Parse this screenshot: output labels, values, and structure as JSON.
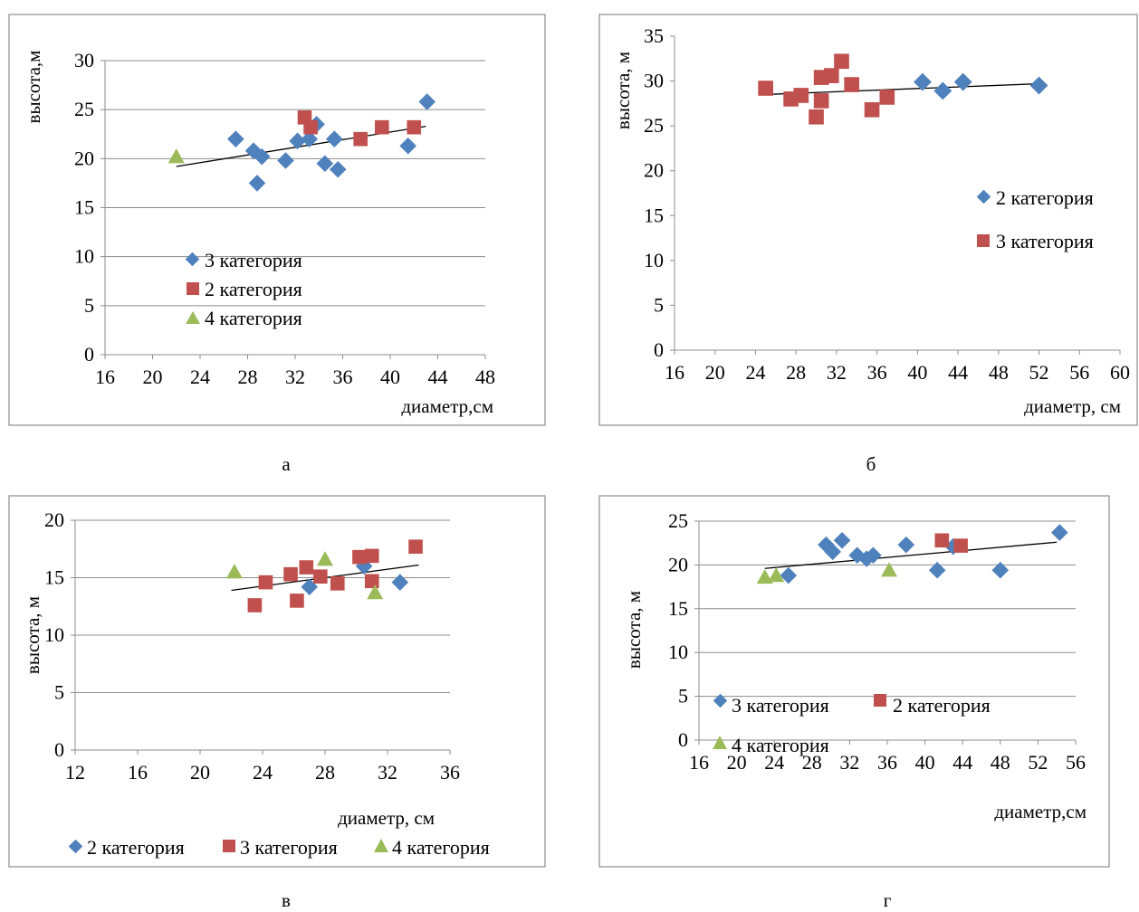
{
  "colors": {
    "blue": "#4f81bd",
    "red": "#c0504d",
    "green": "#9bbb59",
    "grid": "#8c8c8c",
    "trend": "#000000"
  },
  "chart_data": [
    {
      "type": "scatter",
      "panel_label": "а",
      "xlabel": "диаметр,см",
      "ylabel": "высота,м",
      "xlim": [
        16,
        48
      ],
      "ylim": [
        0,
        30
      ],
      "xticks": [
        "16",
        "20",
        "24",
        "28",
        "32",
        "36",
        "40",
        "44",
        "48"
      ],
      "yticks": [
        "0",
        "5",
        "10",
        "15",
        "20",
        "25",
        "30"
      ],
      "grid": "horizontal",
      "legend_position": "inside-lower-middle",
      "series": [
        {
          "name": "3 категория",
          "marker": "diamond",
          "color": "blue",
          "points": [
            [
              27,
              22
            ],
            [
              28.5,
              20.8
            ],
            [
              28.8,
              17.5
            ],
            [
              29.2,
              20.2
            ],
            [
              31.2,
              19.8
            ],
            [
              32.2,
              21.8
            ],
            [
              33.2,
              22
            ],
            [
              33.8,
              23.5
            ],
            [
              34.5,
              19.5
            ],
            [
              35.3,
              22
            ],
            [
              35.6,
              18.9
            ],
            [
              41.5,
              21.3
            ],
            [
              43.1,
              25.8
            ]
          ]
        },
        {
          "name": "2 категория",
          "marker": "square",
          "color": "red",
          "points": [
            [
              32.8,
              24.2
            ],
            [
              33.3,
              23.2
            ],
            [
              37.5,
              22
            ],
            [
              39.3,
              23.2
            ],
            [
              42,
              23.2
            ]
          ]
        },
        {
          "name": "4 категория",
          "marker": "triangle",
          "color": "green",
          "points": [
            [
              22,
              20.2
            ]
          ]
        }
      ],
      "trendline": [
        [
          22,
          19.2
        ],
        [
          43,
          23.3
        ]
      ]
    },
    {
      "type": "scatter",
      "panel_label": "б",
      "xlabel": "диаметр, см",
      "ylabel": "высота, м",
      "xlim": [
        16,
        60
      ],
      "ylim": [
        0,
        35
      ],
      "xticks": [
        "16",
        "20",
        "24",
        "28",
        "32",
        "36",
        "40",
        "44",
        "48",
        "52",
        "56",
        "60"
      ],
      "yticks": [
        "0",
        "5",
        "10",
        "15",
        "20",
        "25",
        "30",
        "35"
      ],
      "grid": "none",
      "legend_position": "right",
      "series": [
        {
          "name": "2 категория",
          "marker": "diamond",
          "color": "blue",
          "points": [
            [
              40.5,
              29.9
            ],
            [
              42.5,
              28.9
            ],
            [
              44.5,
              29.9
            ],
            [
              52,
              29.5
            ]
          ]
        },
        {
          "name": "3 категория",
          "marker": "square",
          "color": "red",
          "points": [
            [
              25,
              29.2
            ],
            [
              27.5,
              28
            ],
            [
              28.5,
              28.4
            ],
            [
              30,
              26
            ],
            [
              30.5,
              27.8
            ],
            [
              30.5,
              30.4
            ],
            [
              31.5,
              30.6
            ],
            [
              32.5,
              32.2
            ],
            [
              33.5,
              29.6
            ],
            [
              35.5,
              26.8
            ],
            [
              37,
              28.2
            ]
          ]
        }
      ],
      "trendline": [
        [
          25,
          28.5
        ],
        [
          52,
          29.7
        ]
      ]
    },
    {
      "type": "scatter",
      "panel_label": "в",
      "xlabel": "диаметр, см",
      "ylabel": "высота, м",
      "xlim": [
        12,
        36
      ],
      "ylim": [
        0,
        20
      ],
      "xticks": [
        "12",
        "16",
        "20",
        "24",
        "28",
        "32",
        "36"
      ],
      "yticks": [
        "0",
        "5",
        "10",
        "15",
        "20"
      ],
      "grid": "horizontal",
      "legend_position": "bottom",
      "series": [
        {
          "name": "2 категория",
          "marker": "diamond",
          "color": "blue",
          "points": [
            [
              27,
              14.2
            ],
            [
              30.5,
              16
            ],
            [
              32.8,
              14.6
            ]
          ]
        },
        {
          "name": "3 категория",
          "marker": "square",
          "color": "red",
          "points": [
            [
              23.5,
              12.6
            ],
            [
              24.2,
              14.6
            ],
            [
              25.8,
              15.3
            ],
            [
              26.2,
              13
            ],
            [
              26.8,
              15.9
            ],
            [
              27.7,
              15.1
            ],
            [
              28.8,
              14.5
            ],
            [
              30.2,
              16.8
            ],
            [
              31,
              16.9
            ],
            [
              31,
              14.7
            ],
            [
              33.8,
              17.7
            ]
          ]
        },
        {
          "name": "4 категория",
          "marker": "triangle",
          "color": "green",
          "points": [
            [
              22.2,
              15.5
            ],
            [
              28,
              16.6
            ],
            [
              31.2,
              13.7
            ]
          ]
        }
      ],
      "trendline": [
        [
          22,
          13.9
        ],
        [
          34,
          16.1
        ]
      ]
    },
    {
      "type": "scatter",
      "panel_label": "г",
      "xlabel": "диаметр,см",
      "ylabel": "высота, м",
      "xlim": [
        16,
        56
      ],
      "ylim": [
        0,
        25
      ],
      "xticks": [
        "16",
        "20",
        "24",
        "28",
        "32",
        "36",
        "40",
        "44",
        "48",
        "52",
        "56"
      ],
      "yticks": [
        "0",
        "5",
        "10",
        "15",
        "20",
        "25"
      ],
      "grid": "horizontal",
      "legend_position": "inside-bottom-left",
      "series": [
        {
          "name": "3 категория",
          "marker": "diamond",
          "color": "blue",
          "points": [
            [
              25.5,
              18.8
            ],
            [
              29.5,
              22.3
            ],
            [
              30.2,
              21.5
            ],
            [
              31.2,
              22.8
            ],
            [
              32.8,
              21.1
            ],
            [
              33.8,
              20.7
            ],
            [
              34.5,
              21.1
            ],
            [
              38,
              22.3
            ],
            [
              41.3,
              19.4
            ],
            [
              43,
              22.1
            ],
            [
              48,
              19.4
            ],
            [
              54.3,
              23.7
            ]
          ]
        },
        {
          "name": "2 категория",
          "marker": "square",
          "color": "red",
          "points": [
            [
              41.8,
              22.8
            ],
            [
              43.8,
              22.2
            ]
          ]
        },
        {
          "name": "4 категория",
          "marker": "triangle",
          "color": "green",
          "points": [
            [
              23,
              18.6
            ],
            [
              24.2,
              18.8
            ],
            [
              36.2,
              19.4
            ]
          ]
        }
      ],
      "trendline": [
        [
          23,
          19.6
        ],
        [
          54,
          22.6
        ]
      ]
    }
  ]
}
